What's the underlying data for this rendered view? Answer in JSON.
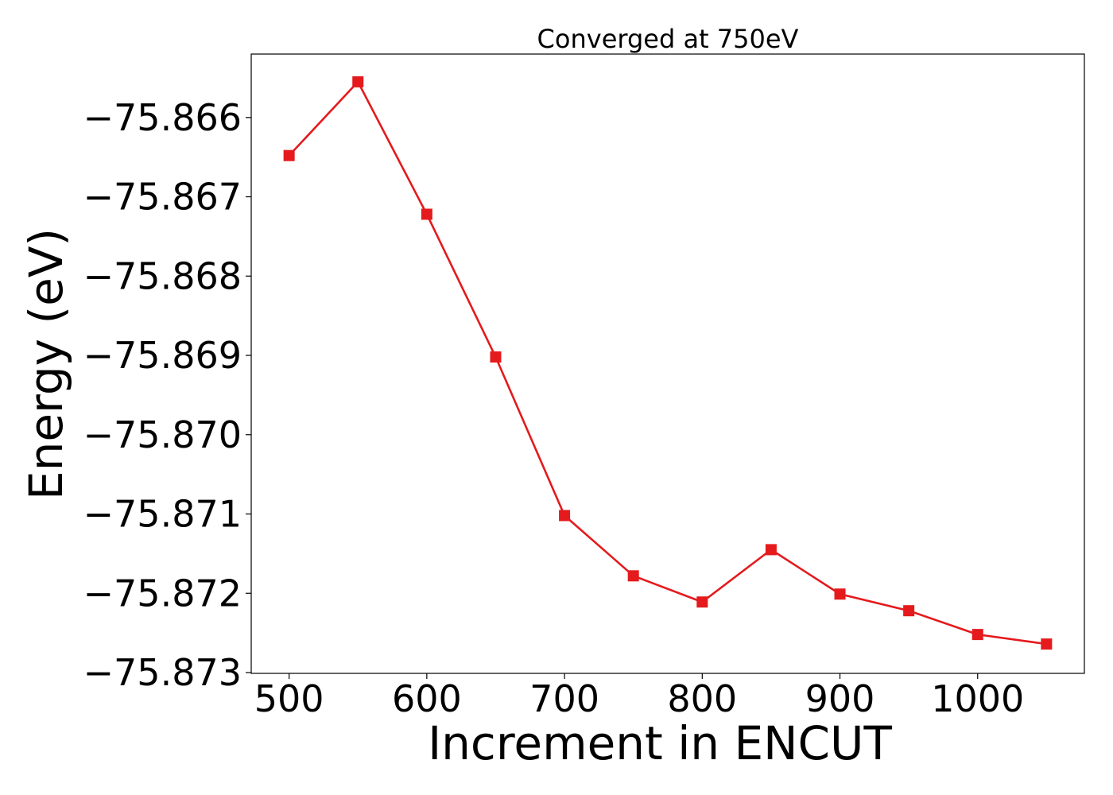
{
  "chart_data": {
    "type": "line",
    "title": "Converged at 750eV",
    "xlabel": "Increment in ENCUT",
    "ylabel": "Energy (eV)",
    "x": [
      500,
      550,
      600,
      650,
      700,
      750,
      800,
      850,
      900,
      950,
      1000,
      1050
    ],
    "series": [
      {
        "values": [
          -75.86648,
          -75.86555,
          -75.86722,
          -75.86902,
          -75.87102,
          -75.87178,
          -75.87211,
          -75.87145,
          -75.87201,
          -75.87222,
          -75.87252,
          -75.87264
        ],
        "color": "#e41a1c",
        "marker": "square"
      }
    ],
    "xticks": [
      500,
      600,
      700,
      800,
      900,
      1000
    ],
    "xtick_labels": [
      "500",
      "600",
      "700",
      "800",
      "900",
      "1000"
    ],
    "yticks": [
      -75.866,
      -75.867,
      -75.868,
      -75.869,
      -75.87,
      -75.871,
      -75.872,
      -75.873
    ],
    "ytick_labels": [
      "−75.866",
      "−75.867",
      "−75.868",
      "−75.869",
      "−75.870",
      "−75.871",
      "−75.872",
      "−75.873"
    ],
    "xlim": [
      472.5,
      1077.5
    ],
    "ylim": [
      -75.87301,
      -75.8652
    ],
    "grid": false,
    "legend": false
  }
}
